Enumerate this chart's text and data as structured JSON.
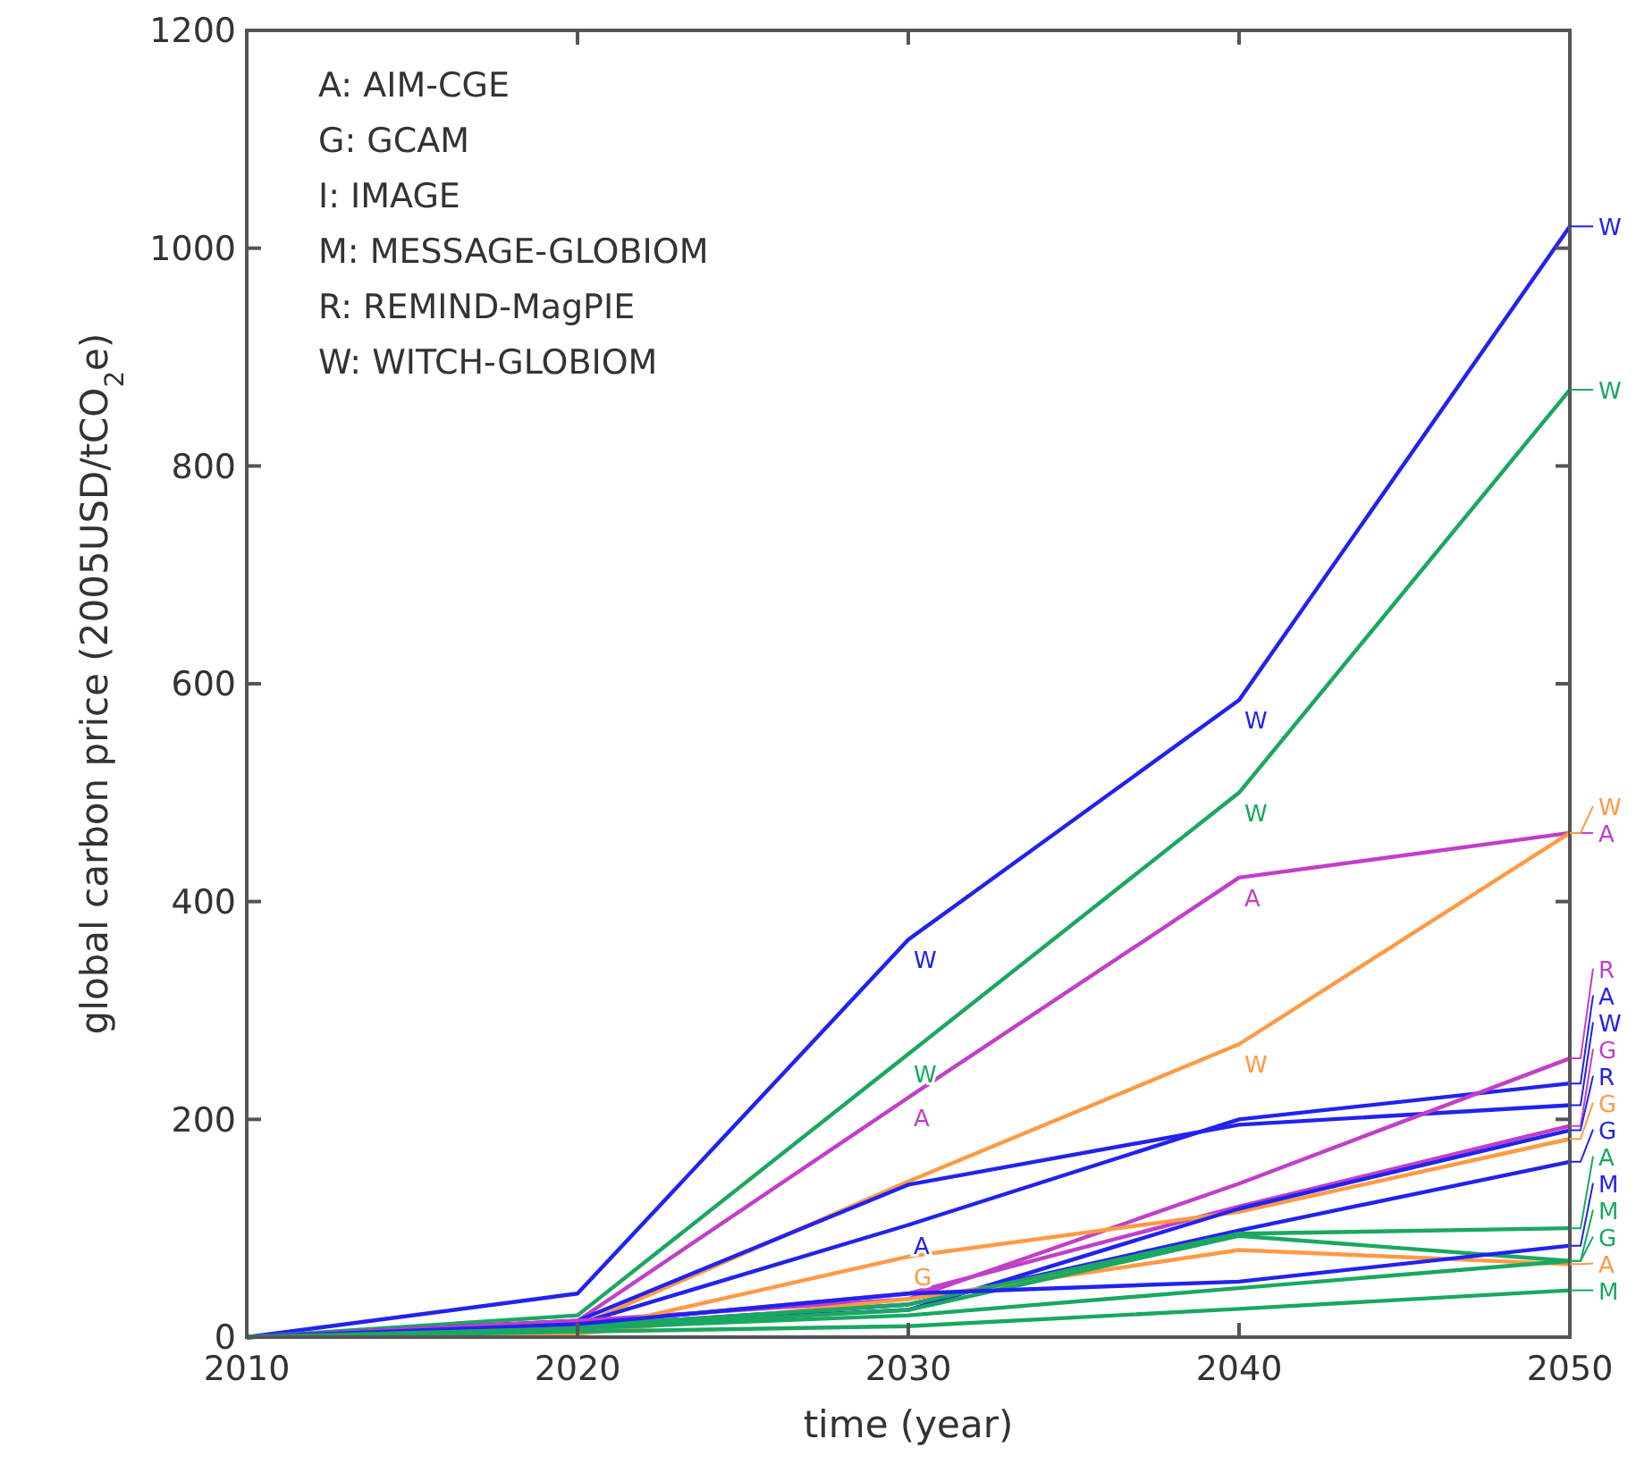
{
  "chart_data": {
    "type": "line",
    "xlabel": "time (year)",
    "ylabel": "global carbon price (2005USD/tCO$_{2}$e)",
    "x": [
      2010,
      2020,
      2030,
      2040,
      2050
    ],
    "xlim": [
      2010,
      2050
    ],
    "xticks": [
      2010,
      2020,
      2030,
      2040,
      2050
    ],
    "ylim": [
      0,
      1200
    ],
    "yticks": [
      0,
      200,
      400,
      600,
      800,
      1000,
      1200
    ],
    "grid": false,
    "legend": "right",
    "marker": "none",
    "line_style": "solid",
    "annotations": [
      "A: AIM-CGE",
      "G: GCAM",
      "I: IMAGE",
      "M: MESSAGE-GLOBIOM",
      "R: REMIND-MagPIE",
      "W: WITCH-GLOBIOM"
    ],
    "series": [
      {
        "name": "W",
        "color": "#2222f0",
        "values": [
          0,
          40,
          365,
          585,
          1020
        ]
      },
      {
        "name": "W",
        "color": "#1aa860",
        "values": [
          0,
          20,
          260,
          500,
          870
        ]
      },
      {
        "name": "A",
        "color": "#c23fc8",
        "values": [
          0,
          15,
          220,
          422,
          463
        ]
      },
      {
        "name": "W",
        "color": "#ff9a45",
        "values": [
          0,
          10,
          143,
          269,
          463
        ]
      },
      {
        "name": "W",
        "color": "#2222f0",
        "values": [
          0,
          15,
          140,
          195,
          213
        ]
      },
      {
        "name": "A",
        "color": "#2222f0",
        "values": [
          0,
          12,
          103,
          200,
          233
        ]
      },
      {
        "name": "R",
        "color": "#c23fc8",
        "values": [
          0,
          15,
          35,
          141,
          256
        ]
      },
      {
        "name": "G",
        "color": "#c23fc8",
        "values": [
          0,
          12,
          40,
          120,
          194
        ]
      },
      {
        "name": "G",
        "color": "#ff9a45",
        "values": [
          0,
          5,
          74,
          115,
          182
        ]
      },
      {
        "name": "G",
        "color": "#2222f0",
        "values": [
          0,
          10,
          30,
          98,
          161
        ]
      },
      {
        "name": "R",
        "color": "#2222f0",
        "values": [
          0,
          10,
          25,
          118,
          190
        ]
      },
      {
        "name": "A",
        "color": "#ff9a45",
        "values": [
          0,
          3,
          35,
          80,
          67
        ]
      },
      {
        "name": "A",
        "color": "#1aa860",
        "values": [
          0,
          10,
          30,
          95,
          100
        ]
      },
      {
        "name": "G",
        "color": "#1aa860",
        "values": [
          0,
          8,
          25,
          93,
          70
        ]
      },
      {
        "name": "M",
        "color": "#2222f0",
        "values": [
          0,
          12,
          40,
          51,
          84
        ]
      },
      {
        "name": "M",
        "color": "#1aa860",
        "values": [
          0,
          8,
          20,
          45,
          70
        ]
      },
      {
        "name": "M",
        "color": "#1aa860",
        "values": [
          0,
          5,
          10,
          26,
          43
        ]
      }
    ]
  }
}
